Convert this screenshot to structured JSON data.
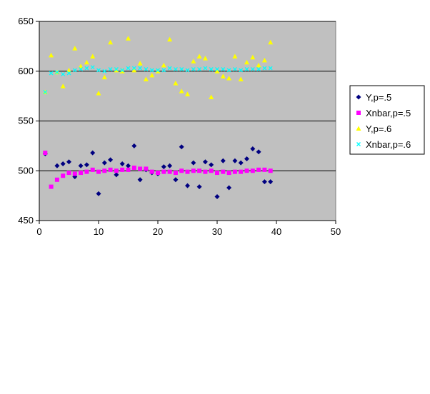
{
  "chart_data": {
    "type": "scatter",
    "title": "",
    "xlabel": "",
    "ylabel": "",
    "xlim": [
      0,
      50
    ],
    "ylim": [
      450,
      650
    ],
    "x_ticks": [
      0,
      10,
      20,
      30,
      40,
      50
    ],
    "y_ticks": [
      450,
      500,
      550,
      600,
      650
    ],
    "grid": "horizontal major gridlines",
    "plot_background": "#c0c0c0",
    "legend_position": "right",
    "series": [
      {
        "name": "Y,p=.5",
        "color": "#000080",
        "marker": "diamond",
        "x": [
          1,
          2,
          3,
          4,
          5,
          6,
          7,
          8,
          9,
          10,
          11,
          12,
          13,
          14,
          15,
          16,
          17,
          18,
          19,
          20,
          21,
          22,
          23,
          24,
          25,
          26,
          27,
          28,
          29,
          30,
          31,
          32,
          33,
          34,
          35,
          36,
          37,
          38,
          39
        ],
        "y": [
          517,
          null,
          505,
          507,
          509,
          494,
          505,
          506,
          518,
          477,
          508,
          511,
          496,
          507,
          505,
          525,
          491,
          501,
          498,
          497,
          504,
          505,
          491,
          524,
          485,
          508,
          484,
          509,
          506,
          474,
          510,
          483,
          510,
          508,
          512,
          522,
          519,
          489,
          489
        ]
      },
      {
        "name": "Xnbar,p=.5",
        "color": "#ff00ff",
        "marker": "square",
        "x": [
          1,
          2,
          3,
          4,
          5,
          6,
          7,
          8,
          9,
          10,
          11,
          12,
          13,
          14,
          15,
          16,
          17,
          18,
          19,
          20,
          21,
          22,
          23,
          24,
          25,
          26,
          27,
          28,
          29,
          30,
          31,
          32,
          33,
          34,
          35,
          36,
          37,
          38,
          39
        ],
        "y": [
          518,
          484,
          491,
          495,
          498,
          497,
          498,
          499,
          501,
          499,
          500,
          501,
          500,
          501,
          501,
          503,
          502,
          502,
          499,
          498,
          499,
          499,
          498,
          500,
          499,
          500,
          500,
          499,
          500,
          498,
          499,
          498,
          499,
          499,
          500,
          500,
          501,
          501,
          500
        ]
      },
      {
        "name": "Y,p=.6",
        "color": "#ffff00",
        "marker": "triangle",
        "x": [
          1,
          2,
          3,
          4,
          5,
          6,
          7,
          8,
          9,
          10,
          11,
          12,
          13,
          14,
          15,
          16,
          17,
          18,
          19,
          20,
          21,
          22,
          23,
          24,
          25,
          26,
          27,
          28,
          29,
          30,
          31,
          32,
          33,
          34,
          35,
          36,
          37,
          38,
          39
        ],
        "y": [
          579,
          616,
          599,
          585,
          601,
          623,
          605,
          609,
          615,
          578,
          594,
          629,
          601,
          600,
          633,
          601,
          608,
          592,
          596,
          600,
          606,
          632,
          588,
          580,
          577,
          610,
          615,
          613,
          574,
          600,
          595,
          593,
          615,
          592,
          609,
          614,
          606,
          611,
          629
        ]
      },
      {
        "name": "Xnbar,p=.6",
        "color": "#00ffff",
        "marker": "x",
        "x": [
          1,
          2,
          3,
          4,
          5,
          6,
          7,
          8,
          9,
          10,
          11,
          12,
          13,
          14,
          15,
          16,
          17,
          18,
          19,
          20,
          21,
          22,
          23,
          24,
          25,
          26,
          27,
          28,
          29,
          30,
          31,
          32,
          33,
          34,
          35,
          36,
          37,
          38,
          39
        ],
        "y": [
          579,
          598,
          599,
          597,
          598,
          601,
          602,
          603,
          604,
          601,
          600,
          602,
          602,
          601,
          603,
          603,
          603,
          602,
          601,
          601,
          601,
          603,
          602,
          602,
          601,
          602,
          602,
          603,
          602,
          602,
          602,
          601,
          602,
          601,
          602,
          602,
          602,
          603,
          603
        ]
      }
    ]
  }
}
